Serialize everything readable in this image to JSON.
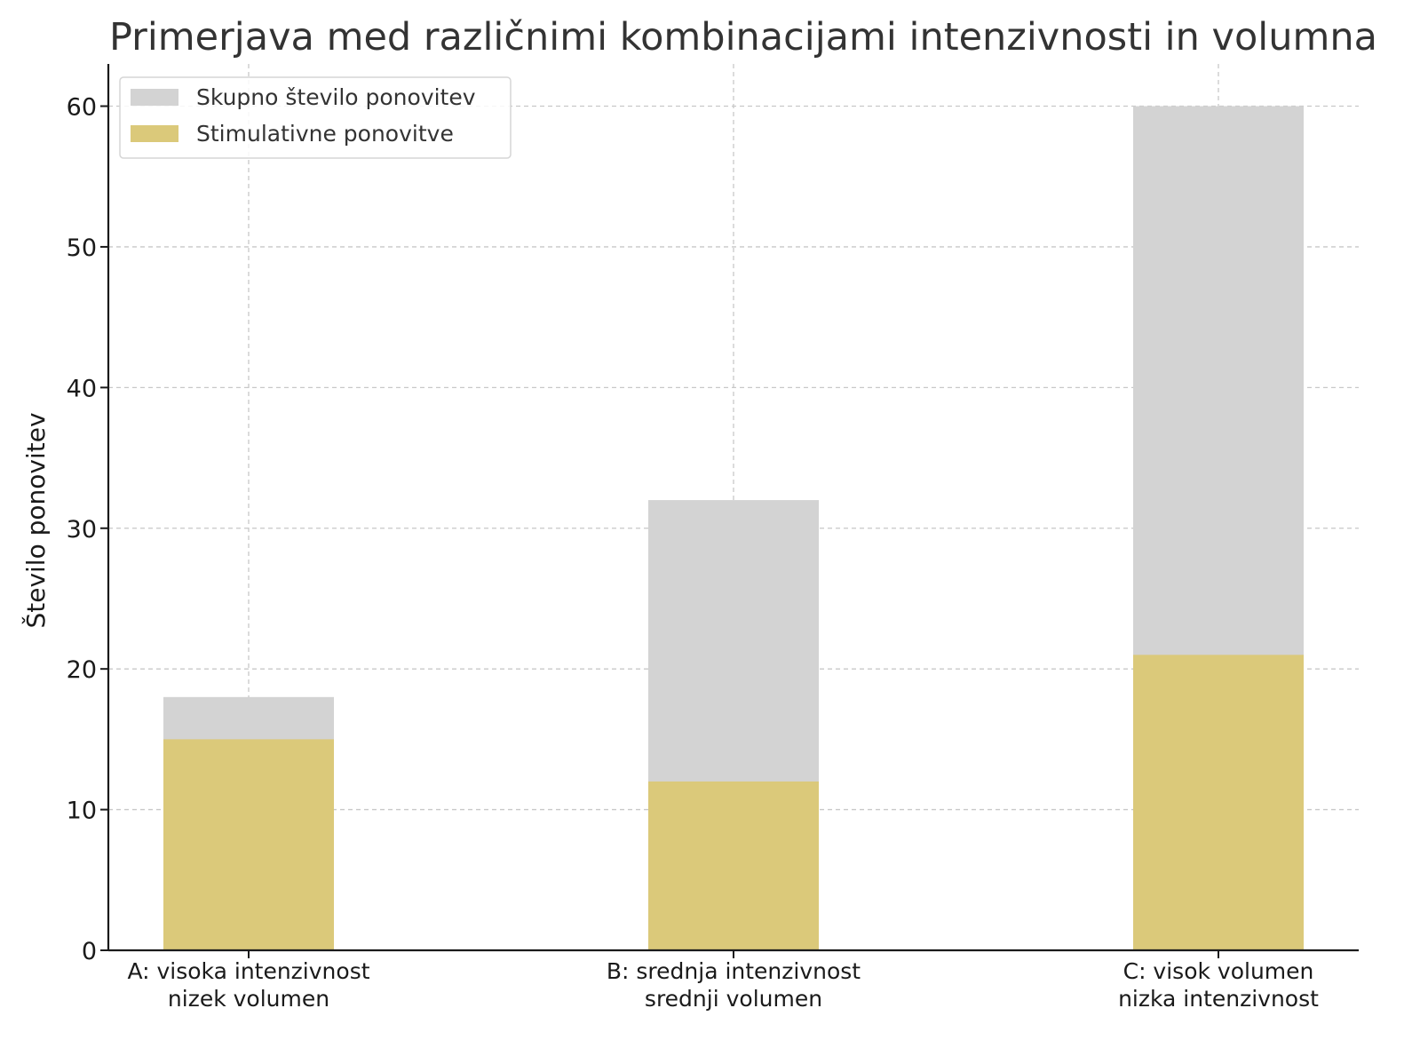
{
  "chart_data": {
    "type": "bar",
    "title": "Primerjava med različnimi kombinacijami intenzivnosti in volumna",
    "xlabel": "",
    "ylabel": "Število ponovitev",
    "categories": [
      [
        "A: visoka intenzivnost",
        "nizek volumen"
      ],
      [
        "B: srednja intenzivnost",
        "srednji volumen"
      ],
      [
        "C: visok volumen",
        "nizka intenzivnost"
      ]
    ],
    "series": [
      {
        "name": "Skupno število ponovitev",
        "values": [
          18,
          32,
          60
        ],
        "color": "#d3d3d3"
      },
      {
        "name": "Stimulativne ponovitve",
        "values": [
          15,
          12,
          21
        ],
        "color": "#dbc97a"
      }
    ],
    "ylim": [
      0,
      63
    ],
    "yticks": [
      0,
      10,
      20,
      30,
      40,
      50,
      60
    ],
    "grid": true,
    "legend_position": "top-left",
    "overlay": true
  }
}
